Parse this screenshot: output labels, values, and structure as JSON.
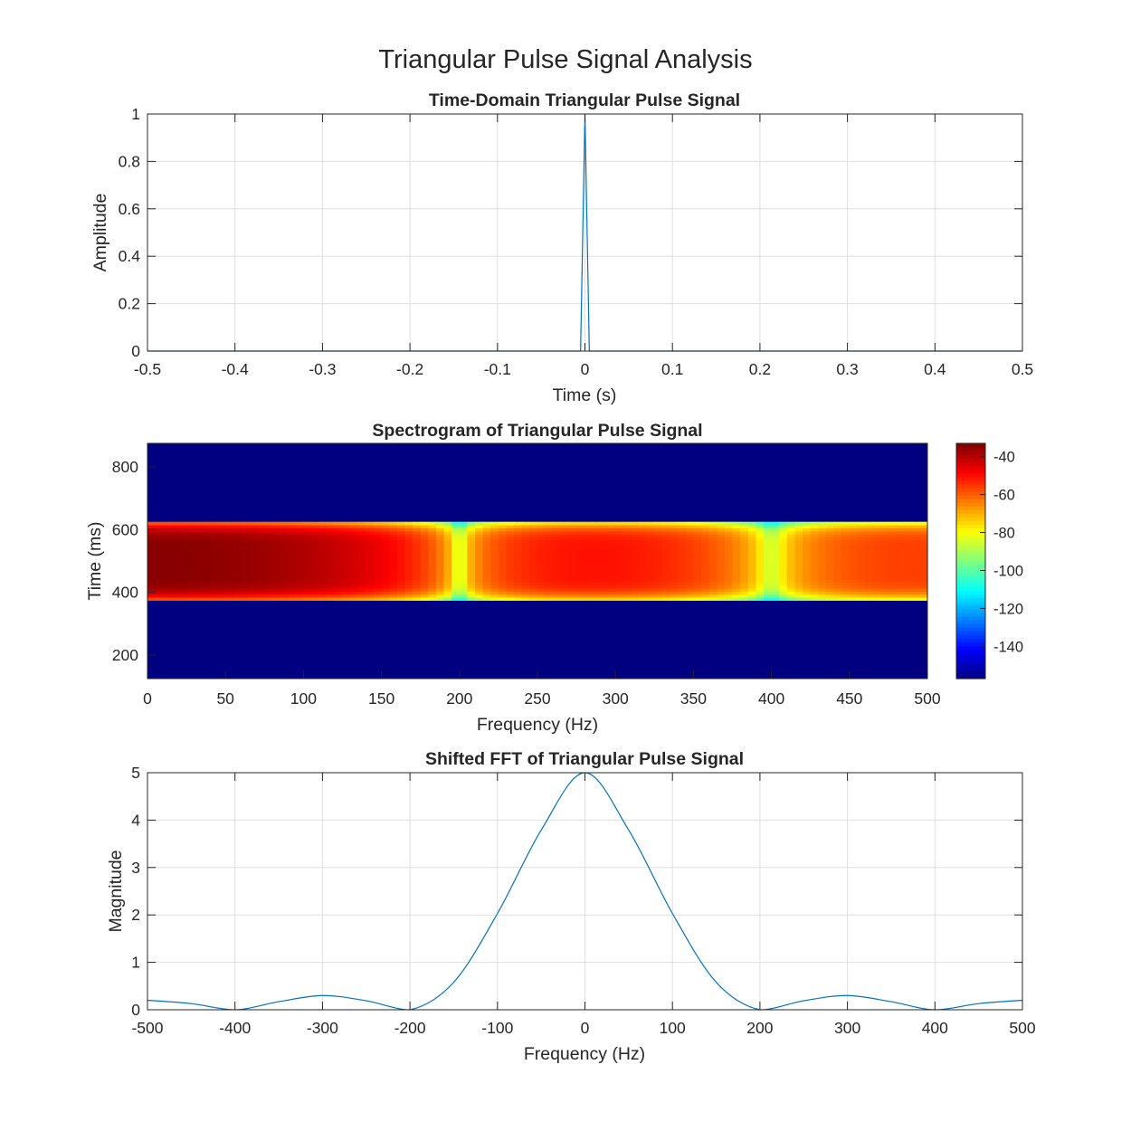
{
  "figure": {
    "suptitle": "Triangular Pulse Signal Analysis"
  },
  "chart_data": [
    {
      "type": "line",
      "title": "Time-Domain Triangular Pulse Signal",
      "xlabel": "Time (s)",
      "ylabel": "Amplitude",
      "xlim": [
        -0.5,
        0.5
      ],
      "ylim": [
        0,
        1
      ],
      "grid": true,
      "xticks": [
        -0.5,
        -0.4,
        -0.3,
        -0.2,
        -0.1,
        0,
        0.1,
        0.2,
        0.3,
        0.4,
        0.5
      ],
      "xtick_labels": [
        "-0.5",
        "-0.4",
        "-0.3",
        "-0.2",
        "-0.1",
        "0",
        "0.1",
        "0.2",
        "0.3",
        "0.4",
        "0.5"
      ],
      "yticks": [
        0,
        0.2,
        0.4,
        0.6,
        0.8,
        1
      ],
      "ytick_labels": [
        "0",
        "0.2",
        "0.4",
        "0.6",
        "0.8",
        "1"
      ],
      "color": "#0072BD",
      "series": [
        {
          "x": [
            -0.5,
            -0.005,
            0,
            0.005,
            0.5
          ],
          "y": [
            0,
            0,
            1,
            0,
            0
          ]
        }
      ]
    },
    {
      "type": "heatmap",
      "title": "Spectrogram of Triangular Pulse Signal",
      "xlabel": "Frequency (Hz)",
      "ylabel": "Time (ms)",
      "xlim": [
        0,
        500
      ],
      "ylim": [
        125,
        875
      ],
      "xticks": [
        0,
        50,
        100,
        150,
        200,
        250,
        300,
        350,
        400,
        450,
        500
      ],
      "xtick_labels": [
        "0",
        "50",
        "100",
        "150",
        "200",
        "250",
        "300",
        "350",
        "400",
        "450",
        "500"
      ],
      "yticks": [
        200,
        400,
        600,
        800
      ],
      "ytick_labels": [
        "200",
        "400",
        "600",
        "800"
      ],
      "colormap": "jet",
      "clim": [
        -157,
        -33
      ],
      "background_value": -157,
      "active_time_range": [
        375,
        625
      ],
      "null_frequencies": [
        200,
        400
      ],
      "colorbar": {
        "ticks": [
          -140,
          -120,
          -100,
          -80,
          -60,
          -40
        ],
        "tick_labels": [
          "-140",
          "-120",
          "-100",
          "-80",
          "-60",
          "-40"
        ]
      }
    },
    {
      "type": "line",
      "title": "Shifted FFT of Triangular Pulse Signal",
      "xlabel": "Frequency (Hz)",
      "ylabel": "Magnitude",
      "xlim": [
        -500,
        500
      ],
      "ylim": [
        0,
        5
      ],
      "grid": true,
      "xticks": [
        -500,
        -400,
        -300,
        -200,
        -100,
        0,
        100,
        200,
        300,
        400,
        500
      ],
      "xtick_labels": [
        "-500",
        "-400",
        "-300",
        "-200",
        "-100",
        "0",
        "100",
        "200",
        "300",
        "400",
        "500"
      ],
      "yticks": [
        0,
        1,
        2,
        3,
        4,
        5
      ],
      "ytick_labels": [
        "0",
        "1",
        "2",
        "3",
        "4",
        "5"
      ],
      "color": "#0072BD",
      "series": [
        {
          "x": [
            -500,
            -450,
            -400,
            -350,
            -300,
            -250,
            -200,
            -150,
            -100,
            -50,
            0,
            50,
            100,
            150,
            200,
            250,
            300,
            350,
            400,
            450,
            500
          ],
          "y": [
            0.2,
            0.13,
            0,
            0.17,
            0.3,
            0.19,
            0,
            0.58,
            2.03,
            3.79,
            5.0,
            3.79,
            2.03,
            0.58,
            0,
            0.19,
            0.3,
            0.17,
            0,
            0.13,
            0.2
          ]
        }
      ]
    }
  ]
}
